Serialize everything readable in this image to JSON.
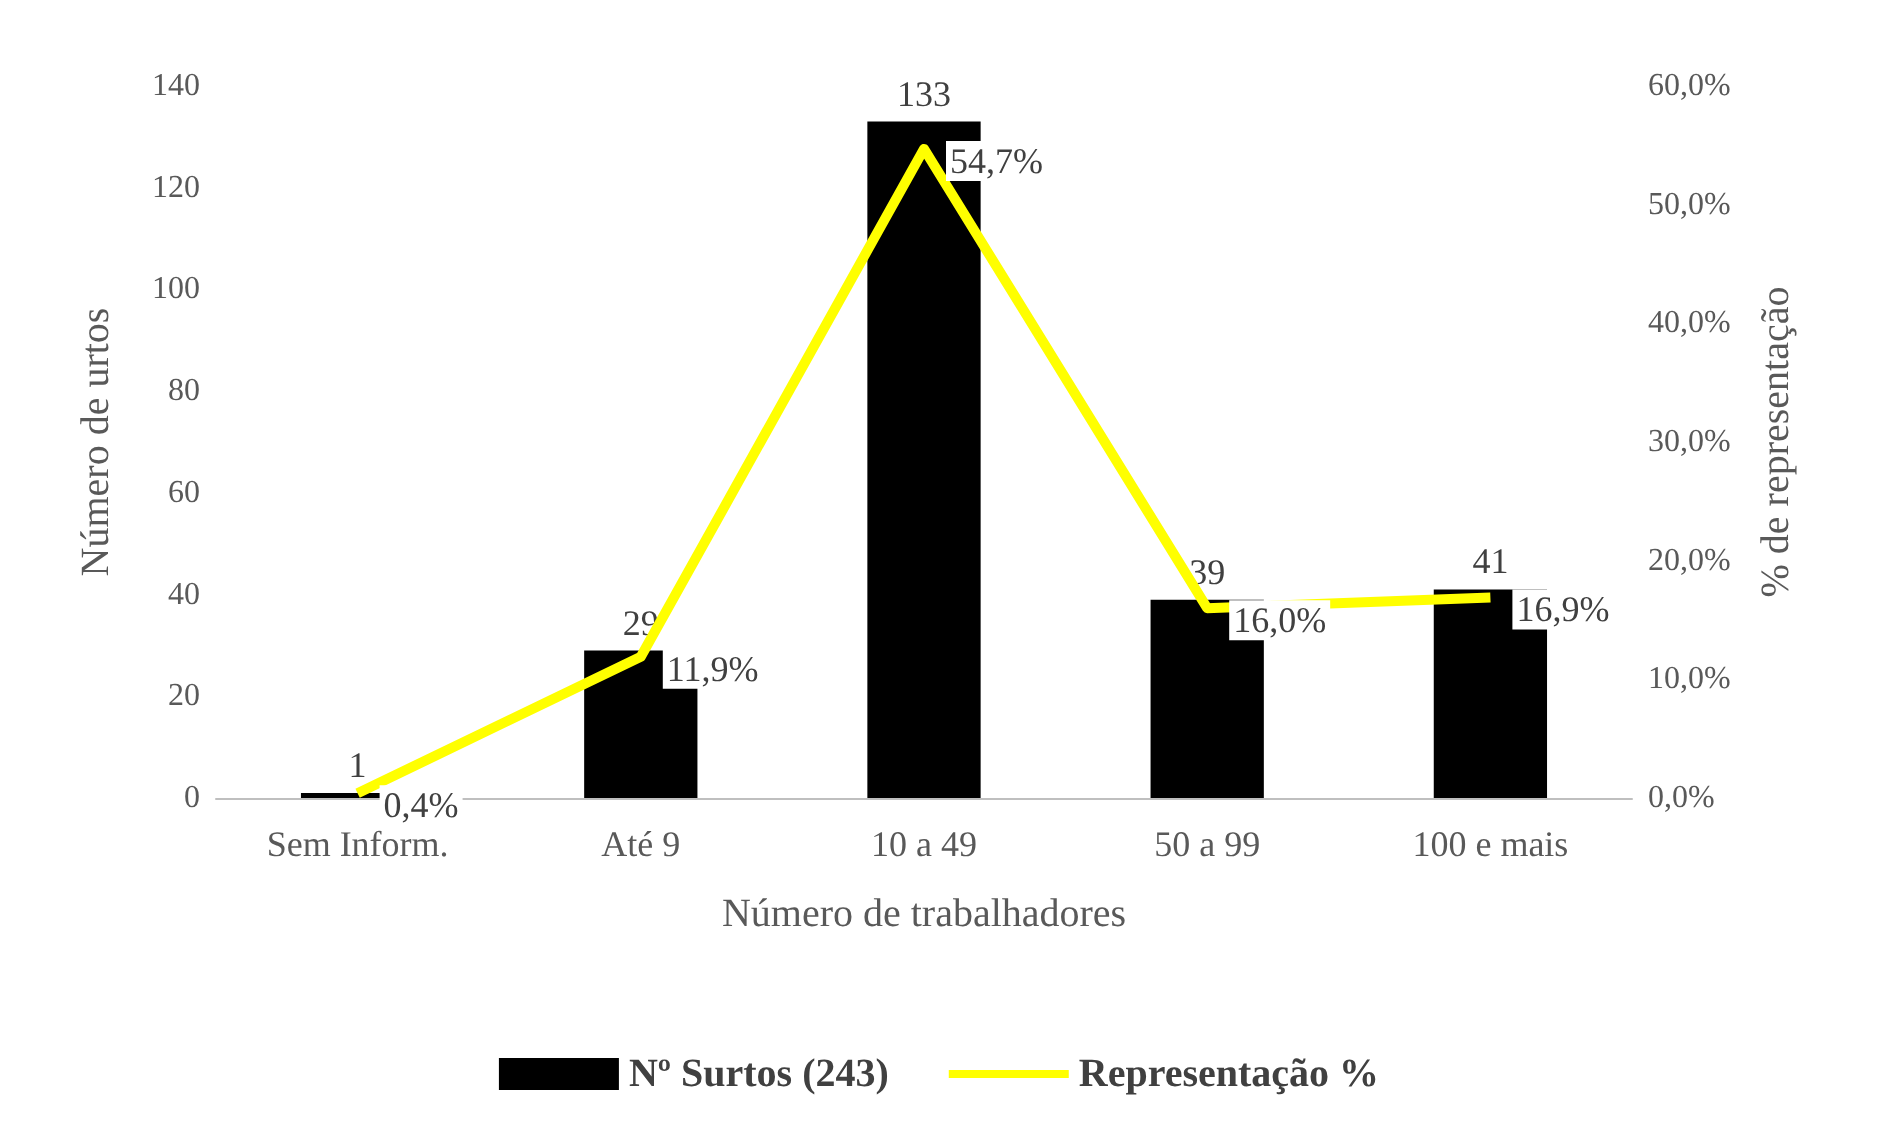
{
  "chart_data": {
    "type": "bar",
    "xlabel": "Número de trabalhadores",
    "ylabel": "Número de urtos",
    "y2label": "% de representação",
    "categories": [
      "Sem Inform.",
      "Até 9",
      "10 a 49",
      "50 a 99",
      "100 e mais"
    ],
    "series": [
      {
        "name": "Nº Surtos (243)",
        "color": "#000000",
        "values": [
          1,
          29,
          133,
          39,
          41
        ],
        "value_labels": [
          "1",
          "29",
          "133",
          "39",
          "41"
        ]
      },
      {
        "name": "Representação %",
        "type": "line",
        "axis": "y2",
        "color": "#ffff00",
        "values": [
          0.4,
          11.9,
          54.7,
          16.0,
          16.9
        ],
        "value_labels": [
          "0,4%",
          "11,9%",
          "54,7%",
          "16,0%",
          "16,9%"
        ]
      }
    ],
    "ylim": [
      0,
      140
    ],
    "yticks": [
      0,
      20,
      40,
      60,
      80,
      100,
      120,
      140
    ],
    "y2lim": [
      0,
      60
    ],
    "y2ticks": [
      {
        "value": 0,
        "label": "0,0%"
      },
      {
        "value": 10,
        "label": "10,0%"
      },
      {
        "value": 20,
        "label": "20,0%"
      },
      {
        "value": 30,
        "label": "30,0%"
      },
      {
        "value": 40,
        "label": "40,0%"
      },
      {
        "value": 50,
        "label": "50,0%"
      },
      {
        "value": 60,
        "label": "60,0%"
      }
    ],
    "grid": false,
    "legend": "bottom",
    "marker": "none",
    "line_style": "solid"
  }
}
